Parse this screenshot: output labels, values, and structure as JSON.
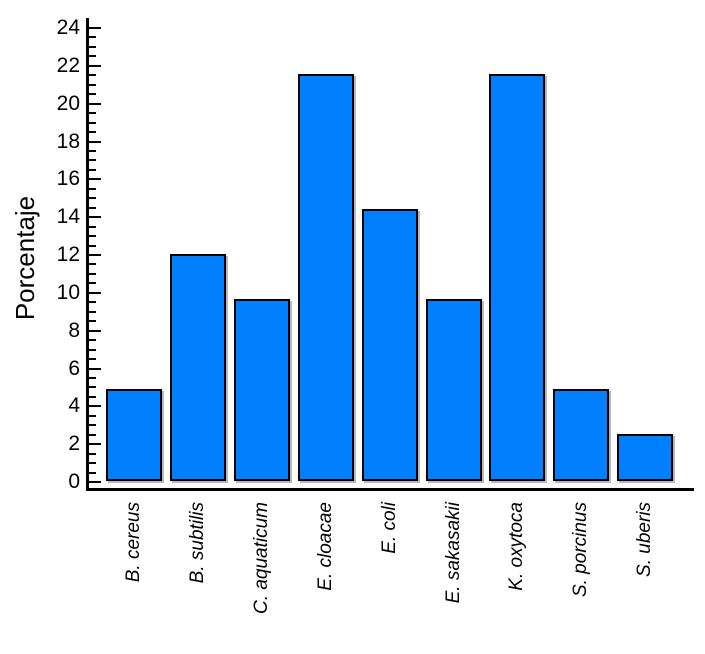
{
  "chart_data": {
    "type": "bar",
    "title": "",
    "xlabel": "",
    "ylabel": "Porcentaje",
    "categories": [
      "B. cereus",
      "B. subtilis",
      "C. aquaticum",
      "E. cloacae",
      "E. coli",
      "E. sakasakii",
      "K. oxytoca",
      "S. porcinus",
      "S. uberis"
    ],
    "values": [
      4.76,
      11.9,
      9.52,
      21.43,
      14.29,
      9.52,
      21.43,
      4.76,
      2.38
    ],
    "ylim": [
      0,
      24.5
    ],
    "yticks": [
      0,
      2,
      4,
      6,
      8,
      10,
      12,
      14,
      16,
      18,
      20,
      22,
      24
    ],
    "ytick_minor_step": 0.5,
    "grid": "off",
    "legend": "none",
    "bar_color": "#0080FF",
    "bar_border_color": "#000000",
    "axis_color": "#000000",
    "text_color": "#000000"
  }
}
